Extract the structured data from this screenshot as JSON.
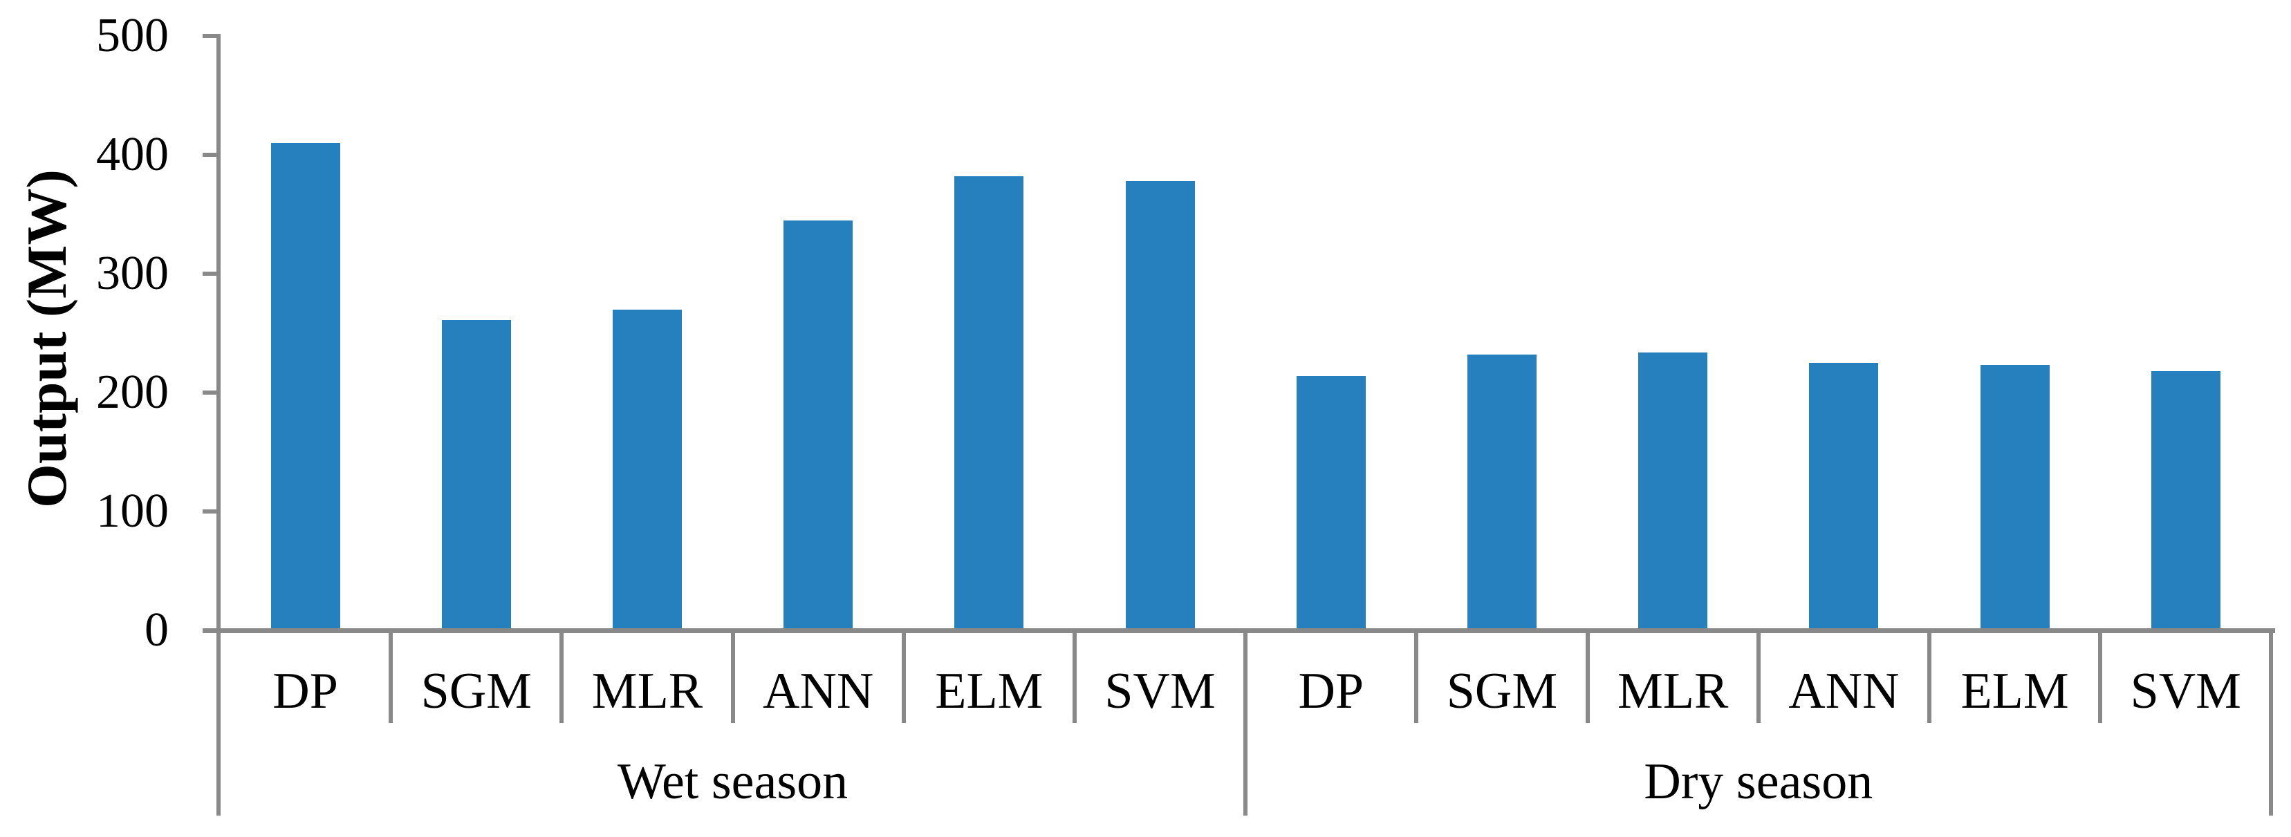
{
  "chart_data": {
    "type": "bar",
    "title": "",
    "ylabel": "Output (MW)",
    "xlabel": "",
    "ylim": [
      0,
      500
    ],
    "yticks": [
      0,
      100,
      200,
      300,
      400,
      500
    ],
    "grid": "off",
    "legend": "none",
    "bar_color": "#2680BE",
    "axis_color": "#898989",
    "text_color": "#000000",
    "categories": [
      "DP",
      "SGM",
      "MLR",
      "ANN",
      "ELM",
      "SVM"
    ],
    "groups": [
      {
        "label": "Wet season",
        "categories": [
          "DP",
          "SGM",
          "MLR",
          "ANN",
          "ELM",
          "SVM"
        ],
        "values": [
          410,
          261,
          270,
          345,
          382,
          378
        ]
      },
      {
        "label": "Dry season",
        "categories": [
          "DP",
          "SGM",
          "MLR",
          "ANN",
          "ELM",
          "SVM"
        ],
        "values": [
          214,
          232,
          234,
          225,
          223,
          218
        ]
      }
    ]
  }
}
